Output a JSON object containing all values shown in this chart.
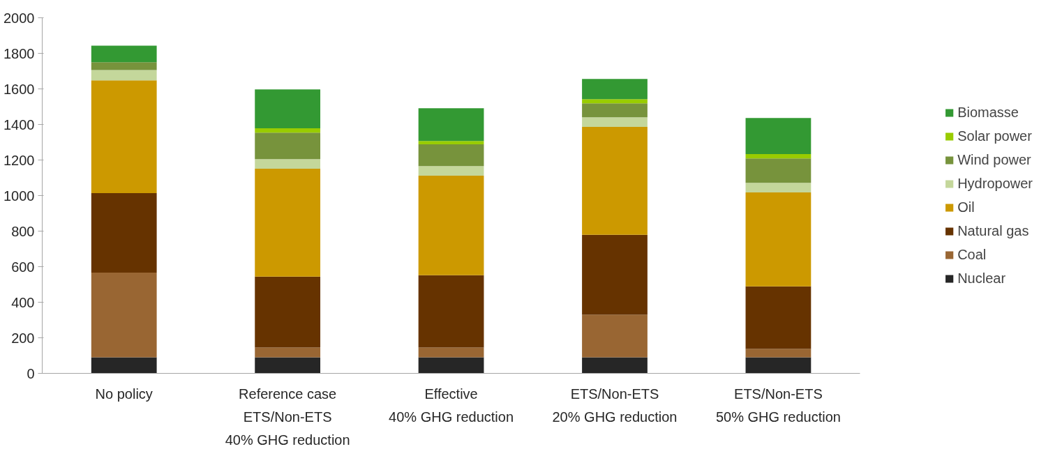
{
  "chart_data": {
    "type": "bar",
    "stacked": true,
    "categories": [
      "No policy",
      "Reference case\nETS/Non-ETS\n40% GHG reduction",
      "Effective\n40% GHG reduction",
      "ETS/Non-ETS\n20% GHG reduction",
      "ETS/Non-ETS\n50% GHG reduction"
    ],
    "series": [
      {
        "name": "Nuclear",
        "color": "#262626",
        "values": [
          90,
          90,
          90,
          90,
          90
        ]
      },
      {
        "name": "Coal",
        "color": "#996633",
        "values": [
          477,
          55,
          55,
          239,
          47
        ]
      },
      {
        "name": "Natural gas",
        "color": "#663300",
        "values": [
          447,
          399,
          407,
          450,
          352
        ]
      },
      {
        "name": "Oil",
        "color": "#cc9900",
        "values": [
          634,
          607,
          560,
          607,
          529
        ]
      },
      {
        "name": "Hydropower",
        "color": "#c4d79b",
        "values": [
          58,
          54,
          54,
          54,
          54
        ]
      },
      {
        "name": "Wind power",
        "color": "#77933c",
        "values": [
          44,
          149,
          122,
          79,
          137
        ]
      },
      {
        "name": "Solar power",
        "color": "#99cc00",
        "values": [
          0,
          24,
          19,
          23,
          24
        ]
      },
      {
        "name": "Biomasse",
        "color": "#339933",
        "values": [
          93,
          219,
          184,
          114,
          203
        ]
      }
    ],
    "ylim": [
      0,
      2000
    ],
    "yticks": [
      0,
      200,
      400,
      600,
      800,
      1000,
      1200,
      1400,
      1600,
      1800,
      2000
    ],
    "grid": false,
    "legend": "right"
  }
}
